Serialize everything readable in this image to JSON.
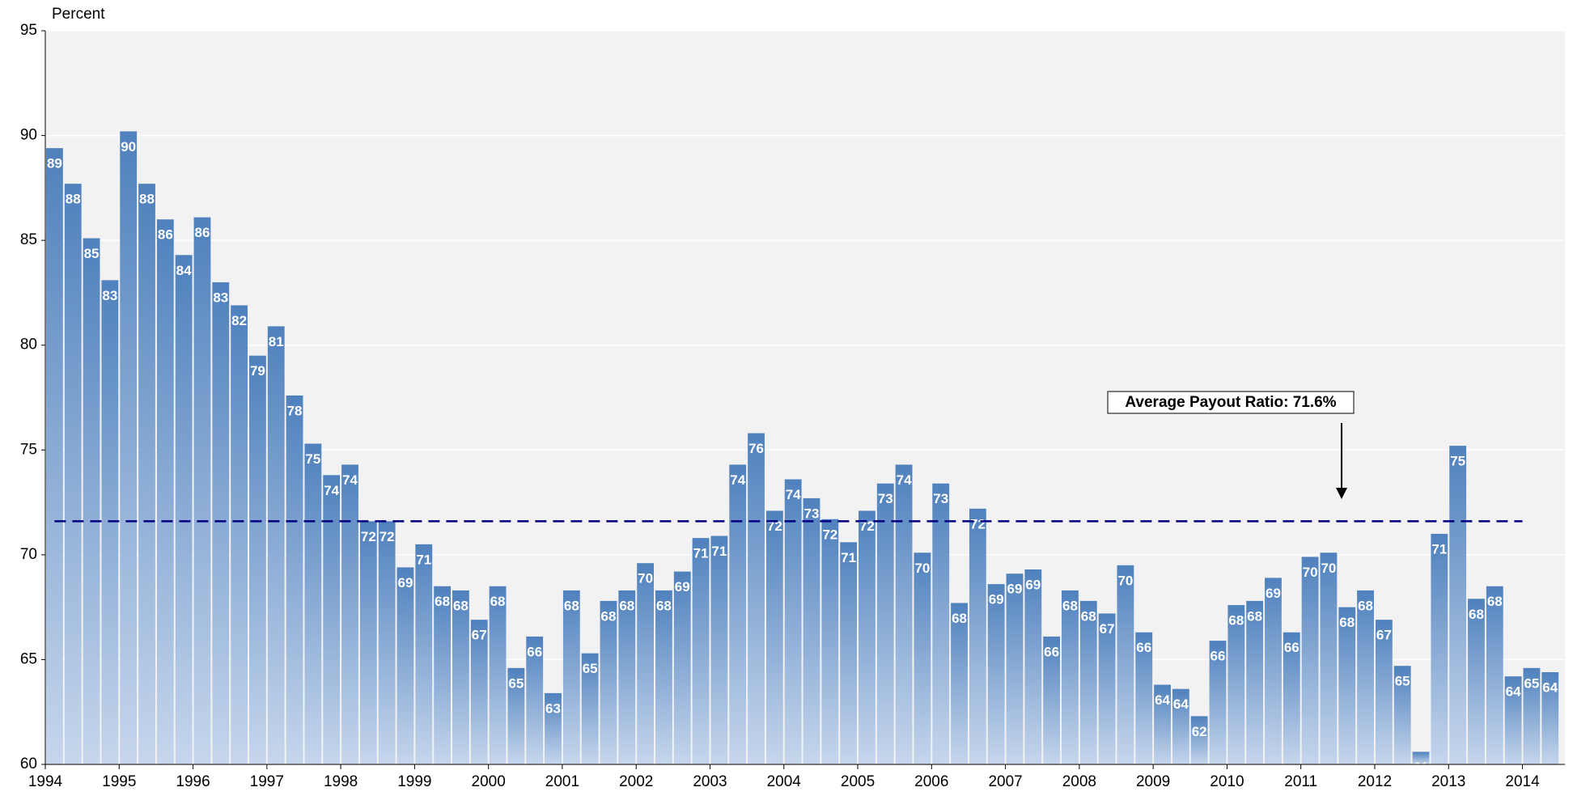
{
  "chart_data": {
    "type": "bar",
    "y_label": "Percent",
    "categories": [
      "1994",
      null,
      null,
      null,
      "1995",
      null,
      null,
      null,
      "1996",
      null,
      null,
      null,
      "1997",
      null,
      null,
      null,
      "1998",
      null,
      null,
      null,
      "1999",
      null,
      null,
      null,
      "2000",
      null,
      null,
      null,
      "2001",
      null,
      null,
      null,
      "2002",
      null,
      null,
      null,
      "2003",
      null,
      null,
      null,
      "2004",
      null,
      null,
      null,
      "2005",
      null,
      null,
      null,
      "2006",
      null,
      null,
      null,
      "2007",
      null,
      null,
      null,
      "2008",
      null,
      null,
      null,
      "2009",
      null,
      null,
      null,
      "2010",
      null,
      null,
      null,
      "2011",
      null,
      null,
      null,
      "2012",
      null,
      null,
      null,
      "2013",
      null,
      null,
      null,
      "2014",
      null
    ],
    "values": [
      89.4,
      87.7,
      85.1,
      83.1,
      90.2,
      87.7,
      86.0,
      84.3,
      86.1,
      83.0,
      81.9,
      79.5,
      80.9,
      77.6,
      75.3,
      73.8,
      74.3,
      71.6,
      71.6,
      69.4,
      70.5,
      68.5,
      68.3,
      66.9,
      68.5,
      64.6,
      66.1,
      63.4,
      68.3,
      65.3,
      67.8,
      68.3,
      69.6,
      68.3,
      69.2,
      70.8,
      70.9,
      74.3,
      75.8,
      72.1,
      73.6,
      72.7,
      71.7,
      70.6,
      72.1,
      73.4,
      74.3,
      70.1,
      73.4,
      67.7,
      72.2,
      68.6,
      69.1,
      69.3,
      66.1,
      68.3,
      67.8,
      67.2,
      69.5,
      66.3,
      63.8,
      63.6,
      62.3,
      65.9,
      67.6,
      67.8,
      68.9,
      66.3,
      69.9,
      70.1,
      67.5,
      68.3,
      66.9,
      64.7,
      60.6,
      71.0,
      75.2,
      67.9,
      68.5,
      64.2,
      64.6,
      64.4
    ],
    "value_labels": [
      "89",
      "88",
      "85",
      "83",
      "90",
      "88",
      "86",
      "84",
      "86",
      "83",
      "82",
      "79",
      "81",
      "78",
      "75",
      "74",
      "74",
      "72",
      "72",
      "69",
      "71",
      "68",
      "68",
      "67",
      "68",
      "65",
      "66",
      "63",
      "68",
      "65",
      "68",
      "68",
      "70",
      "68",
      "69",
      "71",
      "71",
      "74",
      "76",
      "72",
      "74",
      "73",
      "72",
      "71",
      "72",
      "73",
      "74",
      "70",
      "73",
      "68",
      "72",
      "69",
      "69",
      "69",
      "66",
      "68",
      "68",
      "67",
      "70",
      "66",
      "64",
      "64",
      "62",
      "66",
      "68",
      "68",
      "69",
      "66",
      "70",
      "70",
      "68",
      "68",
      "67",
      "65",
      "61",
      "71",
      "75",
      "68",
      "68",
      "64",
      "65",
      "64"
    ],
    "color": "#4f81bd",
    "average": 71.6,
    "average_color": "#000080",
    "annotation": "Average Payout Ratio: 71.6%",
    "ylim": [
      60,
      95
    ],
    "yticks": [
      60,
      65,
      70,
      75,
      80,
      85,
      90,
      95
    ],
    "grid": true
  }
}
